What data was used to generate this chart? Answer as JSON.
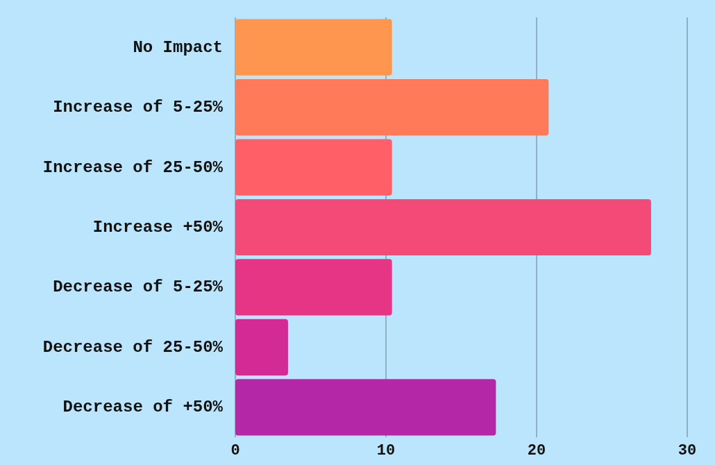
{
  "chart_data": {
    "type": "bar",
    "orientation": "horizontal",
    "categories": [
      "No Impact",
      "Increase of 5-25%",
      "Increase of 25-50%",
      "Increase +50%",
      "Decrease of 5-25%",
      "Decrease of 25-50%",
      "Decrease of +50%"
    ],
    "values": [
      10.4,
      20.8,
      10.4,
      27.6,
      10.4,
      3.5,
      17.3
    ],
    "colors": [
      "#ff964f",
      "#ff7a59",
      "#ff5f67",
      "#f44a78",
      "#e63585",
      "#d42a96",
      "#b428a8"
    ],
    "xlim": [
      0,
      30
    ],
    "xticks": [
      0,
      10,
      20,
      30
    ],
    "grid": "x"
  }
}
